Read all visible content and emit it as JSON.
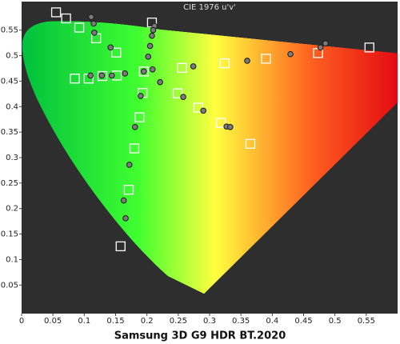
{
  "chart_data": {
    "type": "scatter",
    "title": "CIE 1976 u'v'",
    "caption": "Samsung 3D G9 HDR BT.2020",
    "xlim": [
      0,
      0.6
    ],
    "ylim": [
      -0.006,
      0.606
    ],
    "xticks": [
      0,
      0.05,
      0.1,
      0.15,
      0.2,
      0.25,
      0.3,
      0.35,
      0.4,
      0.45,
      0.5,
      0.55
    ],
    "yticks": [
      0.05,
      0.1,
      0.15,
      0.2,
      0.25,
      0.3,
      0.35,
      0.4,
      0.45,
      0.5,
      0.55
    ],
    "grid": false,
    "series": [
      {
        "marker": "square",
        "color": "#ffffff",
        "x": [
          0.055,
          0.071,
          0.092,
          0.119,
          0.151,
          0.208,
          0.195,
          0.085,
          0.107,
          0.129,
          0.152,
          0.193,
          0.188,
          0.18,
          0.171,
          0.158,
          0.256,
          0.324,
          0.39,
          0.473,
          0.555,
          0.249,
          0.282,
          0.318,
          0.365
        ],
        "values": [
          0.585,
          0.573,
          0.555,
          0.534,
          0.506,
          0.565,
          0.469,
          0.455,
          0.455,
          0.46,
          0.461,
          0.427,
          0.379,
          0.318,
          0.237,
          0.126,
          0.476,
          0.485,
          0.494,
          0.505,
          0.516,
          0.426,
          0.398,
          0.368,
          0.327
        ]
      },
      {
        "marker": "circle",
        "color": "#7a7a7a",
        "x": [
          0.111,
          0.115,
          0.116,
          0.142,
          0.11,
          0.128,
          0.144,
          0.165,
          0.19,
          0.181,
          0.172,
          0.163,
          0.166,
          0.212,
          0.21,
          0.208,
          0.205,
          0.202,
          0.209,
          0.221,
          0.274,
          0.36,
          0.429,
          0.477,
          0.485,
          0.258,
          0.29,
          0.327,
          0.333,
          0.195
        ],
        "values": [
          0.576,
          0.563,
          0.545,
          0.516,
          0.461,
          0.461,
          0.461,
          0.465,
          0.421,
          0.36,
          0.286,
          0.216,
          0.181,
          0.558,
          0.55,
          0.539,
          0.519,
          0.498,
          0.473,
          0.448,
          0.479,
          0.49,
          0.503,
          0.516,
          0.524,
          0.419,
          0.392,
          0.361,
          0.36,
          0.469
        ]
      }
    ]
  }
}
